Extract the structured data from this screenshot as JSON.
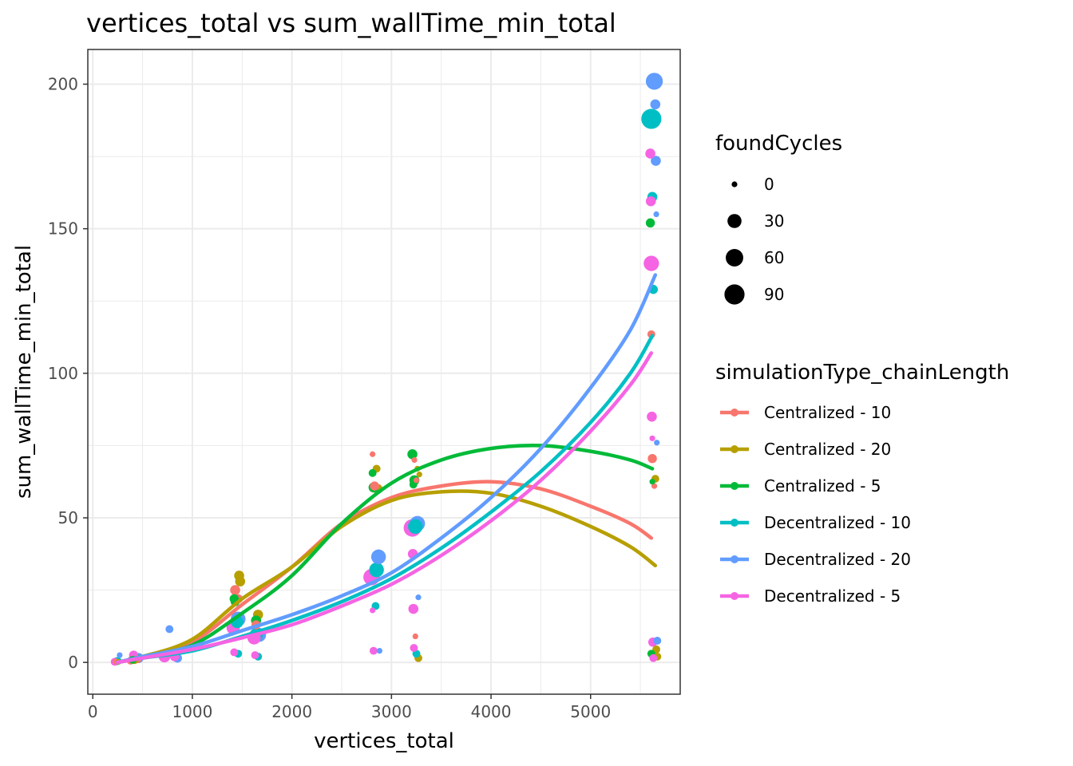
{
  "chart_data": {
    "type": "scatter",
    "title": "vertices_total  vs  sum_wallTime_min_total",
    "xlabel": "vertices_total",
    "ylabel": "sum_wallTime_min_total",
    "xlim": [
      -50,
      5900
    ],
    "ylim": [
      -11,
      212
    ],
    "x_ticks": [
      0,
      1000,
      2000,
      3000,
      4000,
      5000
    ],
    "x_tick_labels": [
      "0",
      "1000",
      "2000",
      "3000",
      "4000",
      "5000"
    ],
    "y_ticks": [
      0,
      50,
      100,
      150,
      200
    ],
    "y_tick_labels": [
      "0",
      "50",
      "100",
      "150",
      "200"
    ],
    "grid": true,
    "size_legend": {
      "title": "foundCycles",
      "entries": [
        {
          "label": "0",
          "value": 0
        },
        {
          "label": "30",
          "value": 30
        },
        {
          "label": "60",
          "value": 60
        },
        {
          "label": "90",
          "value": 90
        }
      ]
    },
    "color_legend": {
      "title": "simulationType_chainLength",
      "placement": "right"
    },
    "series": [
      {
        "name": "Centralized - 10",
        "color": "#F8766D",
        "points": [
          {
            "x": 230,
            "y": 0.3,
            "s": 0
          },
          {
            "x": 380,
            "y": 0.6,
            "s": 2
          },
          {
            "x": 450,
            "y": 1.1,
            "s": 2
          },
          {
            "x": 1430,
            "y": 25,
            "s": 8
          },
          {
            "x": 1460,
            "y": 22,
            "s": 5
          },
          {
            "x": 1640,
            "y": 13,
            "s": 5
          },
          {
            "x": 2810,
            "y": 72,
            "s": 0
          },
          {
            "x": 2830,
            "y": 61,
            "s": 5
          },
          {
            "x": 3230,
            "y": 70,
            "s": 0
          },
          {
            "x": 3240,
            "y": 9,
            "s": 0
          },
          {
            "x": 3250,
            "y": 63,
            "s": 0
          },
          {
            "x": 5610,
            "y": 113.5,
            "s": 2
          },
          {
            "x": 5620,
            "y": 70.5,
            "s": 5
          },
          {
            "x": 5640,
            "y": 61,
            "s": 0
          }
        ],
        "curve": {
          "x": [
            250,
            500,
            1000,
            1500,
            2000,
            2500,
            3000,
            3500,
            4000,
            4500,
            5000,
            5400,
            5610
          ],
          "y": [
            0,
            2,
            7,
            20,
            33,
            48,
            57,
            61,
            62.5,
            60,
            54,
            48,
            43
          ]
        }
      },
      {
        "name": "Centralized - 20",
        "color": "#B79F00",
        "points": [
          {
            "x": 260,
            "y": 0.2,
            "s": 0
          },
          {
            "x": 420,
            "y": 0.8,
            "s": 2
          },
          {
            "x": 1470,
            "y": 30,
            "s": 8
          },
          {
            "x": 1480,
            "y": 28,
            "s": 8
          },
          {
            "x": 1660,
            "y": 16.5,
            "s": 8
          },
          {
            "x": 2850,
            "y": 67,
            "s": 2
          },
          {
            "x": 2860,
            "y": 60,
            "s": 8
          },
          {
            "x": 3260,
            "y": 67,
            "s": 0
          },
          {
            "x": 3270,
            "y": 1.5,
            "s": 2
          },
          {
            "x": 3280,
            "y": 65,
            "s": 0
          },
          {
            "x": 5650,
            "y": 63.5,
            "s": 2
          },
          {
            "x": 5660,
            "y": 4.5,
            "s": 2
          },
          {
            "x": 5670,
            "y": 2,
            "s": 2
          }
        ],
        "curve": {
          "x": [
            250,
            500,
            1000,
            1500,
            2000,
            2500,
            3000,
            3500,
            4000,
            4500,
            5000,
            5400,
            5650
          ],
          "y": [
            0,
            2,
            8,
            22,
            33,
            47,
            56,
            59,
            58.5,
            54,
            47,
            40,
            33.5
          ]
        }
      },
      {
        "name": "Centralized - 5",
        "color": "#00BA38",
        "points": [
          {
            "x": 240,
            "y": 0.4,
            "s": 2
          },
          {
            "x": 400,
            "y": 0.9,
            "s": 2
          },
          {
            "x": 1420,
            "y": 22,
            "s": 5
          },
          {
            "x": 1430,
            "y": 21,
            "s": 5
          },
          {
            "x": 1640,
            "y": 14.5,
            "s": 8
          },
          {
            "x": 2810,
            "y": 65.5,
            "s": 2
          },
          {
            "x": 2820,
            "y": 60.5,
            "s": 8
          },
          {
            "x": 3210,
            "y": 72,
            "s": 8
          },
          {
            "x": 3220,
            "y": 61.5,
            "s": 2
          },
          {
            "x": 3230,
            "y": 63,
            "s": 8
          },
          {
            "x": 5600,
            "y": 152,
            "s": 5
          },
          {
            "x": 5610,
            "y": 3,
            "s": 2
          },
          {
            "x": 5620,
            "y": 62.5,
            "s": 0
          }
        ],
        "curve": {
          "x": [
            250,
            500,
            1000,
            1500,
            2000,
            2500,
            3000,
            3500,
            4000,
            4500,
            5000,
            5400,
            5620
          ],
          "y": [
            0,
            2,
            6,
            17,
            30,
            48,
            62,
            70,
            74,
            75,
            73,
            70,
            67
          ]
        }
      },
      {
        "name": "Decentralized - 10",
        "color": "#00BFC4",
        "points": [
          {
            "x": 250,
            "y": 0.5,
            "s": 2
          },
          {
            "x": 430,
            "y": 1.5,
            "s": 5
          },
          {
            "x": 1450,
            "y": 14,
            "s": 20
          },
          {
            "x": 1460,
            "y": 3,
            "s": 2
          },
          {
            "x": 1640,
            "y": 9.5,
            "s": 25
          },
          {
            "x": 1660,
            "y": 2,
            "s": 2
          },
          {
            "x": 2840,
            "y": 19.5,
            "s": 2
          },
          {
            "x": 2850,
            "y": 32,
            "s": 35
          },
          {
            "x": 3240,
            "y": 47,
            "s": 35
          },
          {
            "x": 3250,
            "y": 3,
            "s": 2
          },
          {
            "x": 5610,
            "y": 188,
            "s": 90
          },
          {
            "x": 5620,
            "y": 161,
            "s": 8
          },
          {
            "x": 5630,
            "y": 129,
            "s": 5
          }
        ],
        "curve": {
          "x": [
            250,
            500,
            1000,
            1500,
            2000,
            2500,
            3000,
            3500,
            4000,
            4500,
            5000,
            5400,
            5620
          ],
          "y": [
            0,
            1.5,
            4,
            9,
            14.5,
            21,
            29,
            39.5,
            52,
            66,
            83,
            100,
            113
          ]
        }
      },
      {
        "name": "Decentralized - 20",
        "color": "#619CFF",
        "points": [
          {
            "x": 270,
            "y": 2.5,
            "s": 0
          },
          {
            "x": 460,
            "y": 1.5,
            "s": 8
          },
          {
            "x": 770,
            "y": 11.5,
            "s": 2
          },
          {
            "x": 850,
            "y": 1.5,
            "s": 5
          },
          {
            "x": 1460,
            "y": 15,
            "s": 35
          },
          {
            "x": 1670,
            "y": 9.5,
            "s": 30
          },
          {
            "x": 2870,
            "y": 36.5,
            "s": 35
          },
          {
            "x": 2880,
            "y": 4,
            "s": 0
          },
          {
            "x": 3260,
            "y": 48,
            "s": 40
          },
          {
            "x": 3270,
            "y": 22.5,
            "s": 0
          },
          {
            "x": 5640,
            "y": 201,
            "s": 55
          },
          {
            "x": 5650,
            "y": 193,
            "s": 8
          },
          {
            "x": 5655,
            "y": 173.5,
            "s": 8
          },
          {
            "x": 5660,
            "y": 155,
            "s": 0
          },
          {
            "x": 5665,
            "y": 76,
            "s": 0
          },
          {
            "x": 5670,
            "y": 7.5,
            "s": 2
          }
        ],
        "curve": {
          "x": [
            250,
            500,
            1000,
            1500,
            2000,
            2500,
            3000,
            3500,
            4000,
            4500,
            5000,
            5400,
            5650
          ],
          "y": [
            0,
            2,
            5.5,
            11,
            16.5,
            23,
            31,
            43,
            57,
            74,
            95,
            115,
            134
          ]
        }
      },
      {
        "name": "Decentralized - 5",
        "color": "#F564E3",
        "points": [
          {
            "x": 220,
            "y": 0.2,
            "s": 2
          },
          {
            "x": 410,
            "y": 2.5,
            "s": 5
          },
          {
            "x": 720,
            "y": 2,
            "s": 15
          },
          {
            "x": 820,
            "y": 2,
            "s": 5
          },
          {
            "x": 1410,
            "y": 12,
            "s": 25
          },
          {
            "x": 1420,
            "y": 3.5,
            "s": 2
          },
          {
            "x": 1620,
            "y": 8.5,
            "s": 25
          },
          {
            "x": 1630,
            "y": 2.5,
            "s": 2
          },
          {
            "x": 2800,
            "y": 29.5,
            "s": 50
          },
          {
            "x": 2810,
            "y": 18,
            "s": 0
          },
          {
            "x": 2820,
            "y": 4,
            "s": 2
          },
          {
            "x": 3210,
            "y": 46.5,
            "s": 60
          },
          {
            "x": 3215,
            "y": 37.5,
            "s": 8
          },
          {
            "x": 3220,
            "y": 18.5,
            "s": 8
          },
          {
            "x": 3225,
            "y": 5,
            "s": 2
          },
          {
            "x": 5600,
            "y": 176,
            "s": 8
          },
          {
            "x": 5605,
            "y": 159.5,
            "s": 8
          },
          {
            "x": 5610,
            "y": 138,
            "s": 40
          },
          {
            "x": 5615,
            "y": 85,
            "s": 8
          },
          {
            "x": 5620,
            "y": 77.5,
            "s": 0
          },
          {
            "x": 5625,
            "y": 7,
            "s": 5
          },
          {
            "x": 5630,
            "y": 1.5,
            "s": 2
          }
        ],
        "curve": {
          "x": [
            250,
            500,
            1000,
            1500,
            2000,
            2500,
            3000,
            3500,
            4000,
            4500,
            5000,
            5400,
            5610
          ],
          "y": [
            0,
            1.5,
            4.5,
            8.5,
            13,
            19.5,
            27,
            37,
            49,
            63,
            80,
            96,
            107
          ]
        }
      }
    ]
  }
}
